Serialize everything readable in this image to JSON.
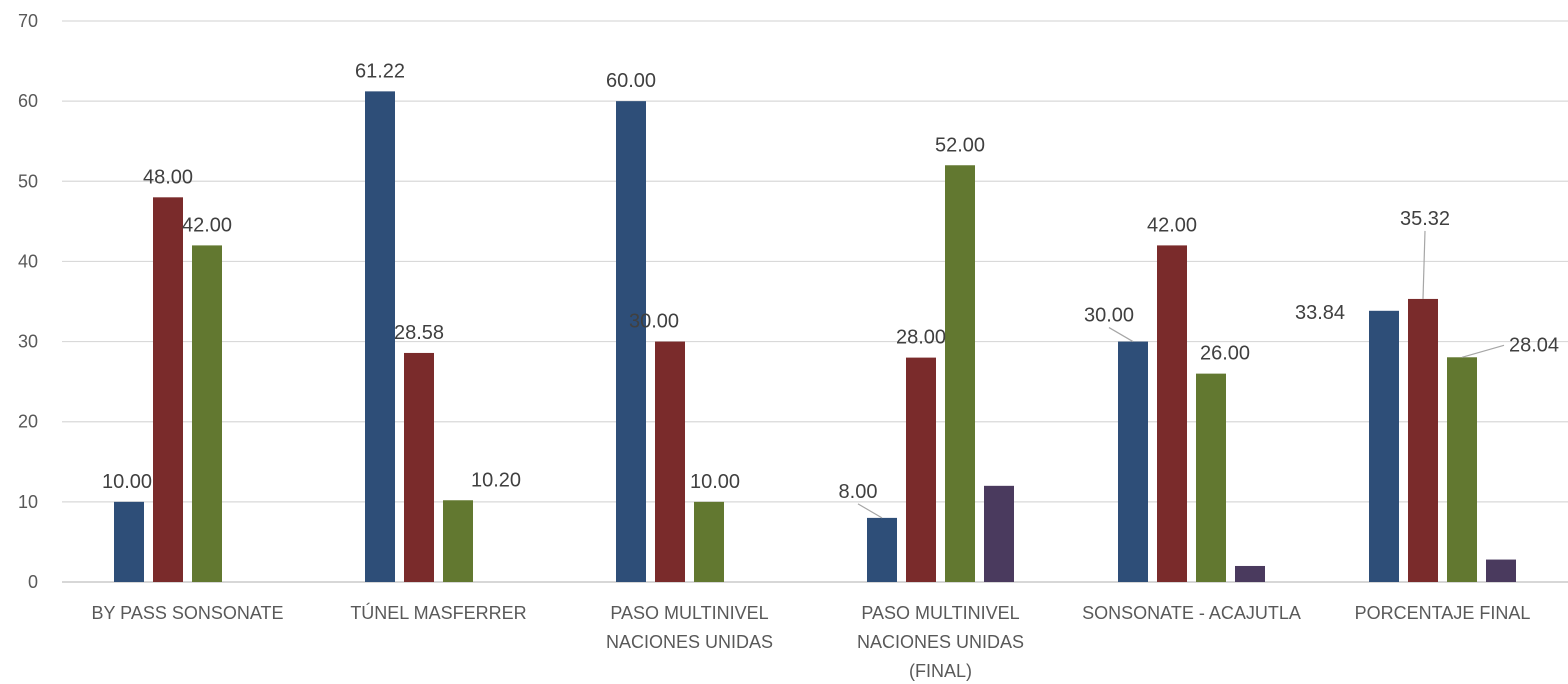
{
  "chart_data": {
    "type": "bar",
    "title": "",
    "xlabel": "",
    "ylabel": "",
    "ylim": [
      0,
      70
    ],
    "yticks": [
      0,
      10,
      20,
      30,
      40,
      50,
      60,
      70
    ],
    "grid": true,
    "legend": "none",
    "categories": [
      [
        "BY PASS SONSONATE"
      ],
      [
        "TÚNEL MASFERRER"
      ],
      [
        "PASO MULTINIVEL",
        "NACIONES UNIDAS"
      ],
      [
        "PASO MULTINIVEL",
        "NACIONES UNIDAS",
        "(FINAL)"
      ],
      [
        "SONSONATE - ACAJUTLA"
      ],
      [
        "PORCENTAJE FINAL"
      ]
    ],
    "series": [
      {
        "color": "#2e4e78",
        "values": [
          10.0,
          61.22,
          60.0,
          8.0,
          30.0,
          33.84
        ],
        "labels": [
          "10.00",
          "61.22",
          "60.00",
          "8.00",
          "30.00",
          "33.84"
        ]
      },
      {
        "color": "#7a2b2b",
        "values": [
          48.0,
          28.58,
          30.0,
          28.0,
          42.0,
          35.32
        ],
        "labels": [
          "48.00",
          "28.58",
          "30.00",
          "28.00",
          "42.00",
          "35.32"
        ]
      },
      {
        "color": "#627830",
        "values": [
          42.0,
          10.2,
          10.0,
          52.0,
          26.0,
          28.04
        ],
        "labels": [
          "42.00",
          "10.20",
          "10.00",
          "52.00",
          "26.00",
          "28.04"
        ]
      },
      {
        "color": "#4a3a5e",
        "values": [
          0,
          0,
          0,
          12.0,
          2.0,
          2.8
        ],
        "labels": [
          "",
          "",
          "",
          "",
          "",
          ""
        ]
      }
    ]
  }
}
